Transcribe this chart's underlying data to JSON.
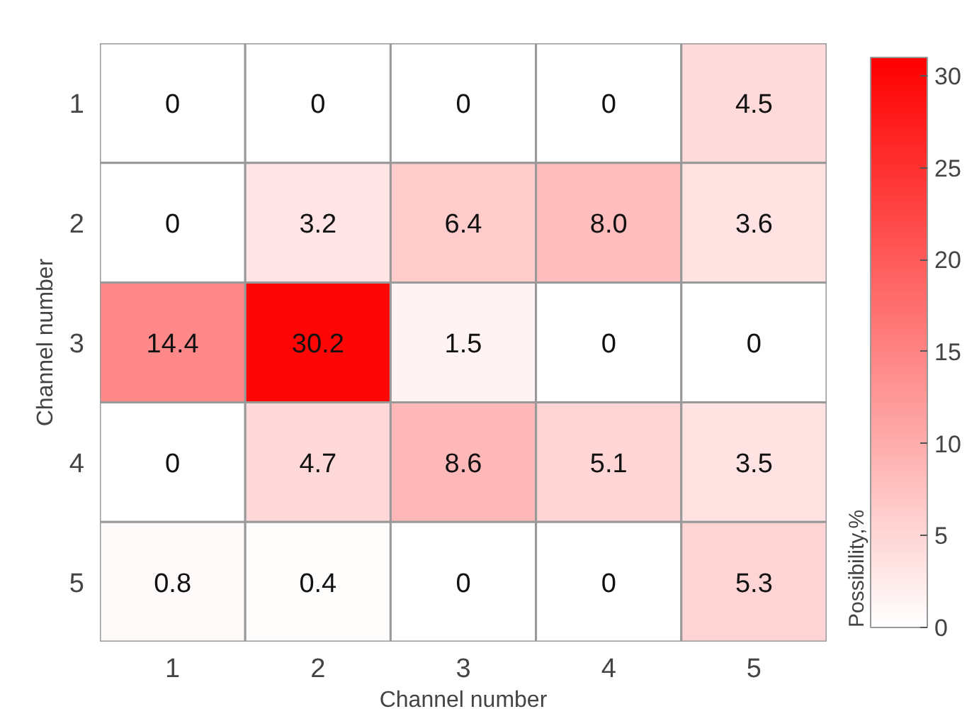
{
  "chart_data": {
    "type": "heatmap",
    "xlabel": "Channel number",
    "ylabel": "Channel number",
    "clabel": "Possibility,%",
    "categories": [
      "1",
      "2",
      "3",
      "4",
      "5"
    ],
    "y_categories": [
      "1",
      "2",
      "3",
      "4",
      "5"
    ],
    "cells": [
      [
        0,
        0,
        0,
        0,
        4.5
      ],
      [
        0,
        3.2,
        6.4,
        8.0,
        3.6
      ],
      [
        14.4,
        30.2,
        1.5,
        0,
        0
      ],
      [
        0,
        4.7,
        8.6,
        5.1,
        3.5
      ],
      [
        0.8,
        0.4,
        0,
        0,
        5.3
      ]
    ],
    "clim": [
      0,
      31
    ],
    "cticks": [
      0,
      5,
      10,
      15,
      20,
      25,
      30
    ],
    "colors": [
      "#ffffff",
      "#ff0000"
    ],
    "cell_labels": [
      [
        "0",
        "0",
        "0",
        "0",
        "4.5"
      ],
      [
        "0",
        "3.2",
        "6.4",
        "8.0",
        "3.6"
      ],
      [
        "14.4",
        "30.2",
        "1.5",
        "0",
        "0"
      ],
      [
        "0",
        "4.7",
        "8.6",
        "5.1",
        "3.5"
      ],
      [
        "0.8",
        "0.4",
        "0",
        "0",
        "5.3"
      ]
    ]
  }
}
